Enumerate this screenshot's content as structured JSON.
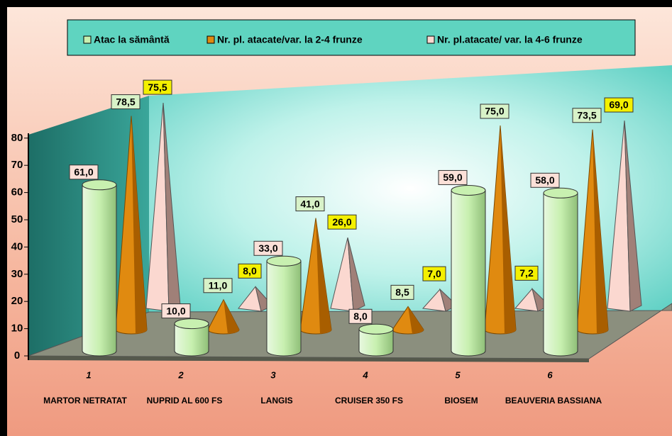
{
  "chart_data": {
    "type": "bar3d",
    "category_numbers": [
      "1",
      "2",
      "3",
      "4",
      "5",
      "6"
    ],
    "categories": [
      "MARTOR NETRATAT",
      "NUPRID AL 600 FS",
      "LANGIS",
      "CRUISER 350 FS",
      "BIOSEM",
      "BEAUVERIA BASSIANA"
    ],
    "series": [
      {
        "name": "Atac la sământă",
        "color": "#c8f0b0",
        "shape": "cylinder",
        "values": [
          61.0,
          10.0,
          33.0,
          8.0,
          59.0,
          58.0
        ],
        "value_labels": [
          "61,0",
          "10,0",
          "33,0",
          "8,0",
          "59,0",
          "58,0"
        ]
      },
      {
        "name": "Nr. pl. atacate/var. la 2-4 frunze",
        "color": "#e08a10",
        "shape": "cone",
        "values": [
          78.5,
          11.0,
          41.0,
          8.5,
          75.0,
          73.5
        ],
        "value_labels": [
          "78,5",
          "11,0",
          "41,0",
          "8,5",
          "75,0",
          "73,5"
        ]
      },
      {
        "name": "Nr. pl.atacate/ var. la 4-6 frunze",
        "color": "#fbd8d0",
        "shape": "pyramid",
        "values": [
          75.5,
          8.0,
          26.0,
          7.0,
          7.2,
          69.0
        ],
        "value_labels": [
          "75,5",
          "8,0",
          "26,0",
          "7,0",
          "7,2",
          "69,0"
        ]
      }
    ],
    "ylim": [
      0,
      80
    ],
    "yticks": [
      0,
      10,
      20,
      30,
      40,
      50,
      60,
      70,
      80
    ],
    "legend": "top"
  }
}
